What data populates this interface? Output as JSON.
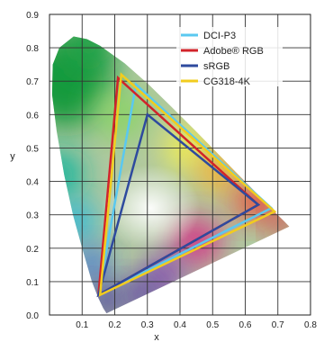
{
  "chart_data": {
    "type": "scatter",
    "title": "",
    "xlabel": "x",
    "ylabel": "y",
    "xlim": [
      0,
      0.8
    ],
    "ylim": [
      0,
      0.9
    ],
    "xticks": [
      "0.1",
      "0.2",
      "0.3",
      "0.4",
      "0.5",
      "0.6",
      "0.7",
      "0.8"
    ],
    "yticks": [
      "0.0",
      "0.1",
      "0.2",
      "0.3",
      "0.4",
      "0.5",
      "0.6",
      "0.7",
      "0.8",
      "0.9"
    ],
    "grid": true,
    "legend_position": "top-right",
    "background": "CIE 1931 chromaticity diagram",
    "locus": [
      [
        0.175,
        0.005
      ],
      [
        0.165,
        0.02
      ],
      [
        0.15,
        0.05
      ],
      [
        0.13,
        0.1
      ],
      [
        0.1,
        0.2
      ],
      [
        0.072,
        0.3
      ],
      [
        0.045,
        0.42
      ],
      [
        0.022,
        0.55
      ],
      [
        0.008,
        0.66
      ],
      [
        0.01,
        0.75
      ],
      [
        0.03,
        0.8
      ],
      [
        0.074,
        0.834
      ],
      [
        0.115,
        0.826
      ],
      [
        0.155,
        0.806
      ],
      [
        0.23,
        0.754
      ],
      [
        0.302,
        0.692
      ],
      [
        0.373,
        0.624
      ],
      [
        0.444,
        0.555
      ],
      [
        0.512,
        0.487
      ],
      [
        0.575,
        0.424
      ],
      [
        0.627,
        0.372
      ],
      [
        0.668,
        0.331
      ],
      [
        0.692,
        0.307
      ],
      [
        0.72,
        0.28
      ],
      [
        0.735,
        0.265
      ]
    ],
    "series": [
      {
        "name": "DCI-P3",
        "color": "#5ac8f0",
        "points": [
          [
            0.68,
            0.32
          ],
          [
            0.265,
            0.69
          ],
          [
            0.15,
            0.06
          ]
        ]
      },
      {
        "name": "Adobe® RGB",
        "color": "#d2232a",
        "points": [
          [
            0.64,
            0.33
          ],
          [
            0.21,
            0.71
          ],
          [
            0.15,
            0.06
          ]
        ]
      },
      {
        "name": "sRGB",
        "color": "#2e4a9e",
        "points": [
          [
            0.64,
            0.33
          ],
          [
            0.3,
            0.6
          ],
          [
            0.15,
            0.06
          ]
        ]
      },
      {
        "name": "CG318-4K",
        "color": "#f2cc1e",
        "points": [
          [
            0.69,
            0.31
          ],
          [
            0.22,
            0.72
          ],
          [
            0.155,
            0.06
          ]
        ]
      }
    ]
  }
}
